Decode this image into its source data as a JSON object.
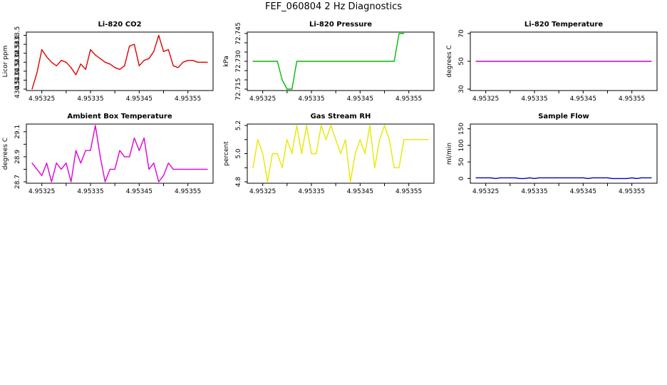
{
  "title": "FEF_060804  2 Hz Diagnostics",
  "chart_data": [
    {
      "type": "line",
      "title": "Li-820 CO2",
      "ylabel": "Licor ppm",
      "color": "#e00000",
      "x_ticks": [
        "4.95325",
        "4.95335",
        "4.95345",
        "4.95355"
      ],
      "x_range": [
        4.95323,
        4.95359
      ],
      "y_ticks": [
        430.5,
        431.0,
        431.5,
        432.0,
        432.5,
        433.0,
        433.5
      ],
      "y_tick_labels": [
        "430.5",
        "431.0",
        "431.5",
        "432.0",
        "432.5",
        "433.0",
        "433.5"
      ],
      "ylim": [
        430.5,
        433.6
      ],
      "x": [
        4.95323,
        4.95324,
        4.95325,
        4.95326,
        4.95327,
        4.95328,
        4.95329,
        4.9533,
        4.95331,
        4.95332,
        4.95333,
        4.95334,
        4.95335,
        4.95336,
        4.95337,
        4.95338,
        4.95339,
        4.9534,
        4.95341,
        4.95342,
        4.95343,
        4.95344,
        4.95345,
        4.95346,
        4.95347,
        4.95348,
        4.95349,
        4.9535,
        4.95351,
        4.95352,
        4.95353,
        4.95354,
        4.95355,
        4.95356,
        4.95357,
        4.95358,
        4.95359
      ],
      "y": [
        430.5,
        431.4,
        432.7,
        432.3,
        432.0,
        431.8,
        432.1,
        432.0,
        431.7,
        431.3,
        431.9,
        431.6,
        432.7,
        432.4,
        432.2,
        432.0,
        431.9,
        431.7,
        431.6,
        431.8,
        432.9,
        433.0,
        431.8,
        432.1,
        432.2,
        432.6,
        433.5,
        432.6,
        432.7,
        431.8,
        431.7,
        432.0,
        432.1,
        432.1,
        432.0,
        432.0,
        432.0
      ]
    },
    {
      "type": "line",
      "title": "Li-820 Pressure",
      "ylabel": "kPa",
      "color": "#00bb00",
      "x_ticks": [
        "4.95325",
        "4.95335",
        "4.95345",
        "4.95355"
      ],
      "x_range": [
        4.95323,
        4.95359
      ],
      "y_ticks": [
        72.715,
        72.72,
        72.725,
        72.73,
        72.735,
        72.74,
        72.745
      ],
      "y_tick_labels": [
        "72.715",
        "",
        "",
        "72.730",
        "",
        "",
        "72.745"
      ],
      "ylim": [
        72.715,
        72.745
      ],
      "x": [
        4.95323,
        4.95328,
        4.95329,
        4.9533,
        4.95331,
        4.95332,
        4.95352,
        4.95353,
        4.95354
      ],
      "y": [
        72.73,
        72.73,
        72.72,
        72.715,
        72.715,
        72.73,
        72.73,
        72.745,
        72.745
      ]
    },
    {
      "type": "line",
      "title": "Li-820 Temperature",
      "ylabel": "degrees C",
      "color": "#cc00cc",
      "x_ticks": [
        "4.95325",
        "4.95335",
        "4.95345",
        "4.95355"
      ],
      "x_range": [
        4.95323,
        4.95359
      ],
      "y_ticks": [
        30,
        50,
        70
      ],
      "y_tick_labels": [
        "30",
        "50",
        "70"
      ],
      "ylim": [
        30,
        70
      ],
      "x": [
        4.95323,
        4.95359
      ],
      "y": [
        50,
        50
      ]
    },
    {
      "type": "line",
      "title": "Ambient Box Temperature",
      "ylabel": "degrees C",
      "color": "#dd00dd",
      "x_ticks": [
        "4.95325",
        "4.95335",
        "4.95345",
        "4.95355"
      ],
      "x_range": [
        4.95323,
        4.95359
      ],
      "y_ticks": [
        28.7,
        28.8,
        28.9,
        29.0,
        29.1
      ],
      "y_tick_labels": [
        "28.7",
        "",
        "28.9",
        "",
        "29.1"
      ],
      "ylim": [
        28.7,
        29.15
      ],
      "x": [
        4.95323,
        4.95324,
        4.95325,
        4.95326,
        4.95327,
        4.95328,
        4.95329,
        4.9533,
        4.95331,
        4.95332,
        4.95333,
        4.95334,
        4.95335,
        4.95336,
        4.95337,
        4.95338,
        4.95339,
        4.9534,
        4.95341,
        4.95342,
        4.95343,
        4.95344,
        4.95345,
        4.95346,
        4.95347,
        4.95348,
        4.95349,
        4.9535,
        4.95351,
        4.95352,
        4.95353,
        4.95354,
        4.95355,
        4.95356,
        4.95357,
        4.95358,
        4.95359
      ],
      "y": [
        28.85,
        28.8,
        28.75,
        28.85,
        28.7,
        28.85,
        28.8,
        28.85,
        28.7,
        28.95,
        28.85,
        28.95,
        28.95,
        29.15,
        28.9,
        28.7,
        28.8,
        28.8,
        28.95,
        28.9,
        28.9,
        29.05,
        28.95,
        29.05,
        28.8,
        28.85,
        28.7,
        28.75,
        28.85,
        28.8,
        28.8,
        28.8,
        28.8,
        28.8,
        28.8,
        28.8,
        28.8
      ]
    },
    {
      "type": "line",
      "title": "Gas Stream RH",
      "ylabel": "percent",
      "color": "#e8e800",
      "x_ticks": [
        "4.95325",
        "4.95335",
        "4.95345",
        "4.95355"
      ],
      "x_range": [
        4.95323,
        4.95359
      ],
      "y_ticks": [
        4.8,
        4.9,
        5.0,
        5.1,
        5.2
      ],
      "y_tick_labels": [
        "4.8",
        "",
        "5.0",
        "",
        "5.2"
      ],
      "ylim": [
        4.8,
        5.2
      ],
      "x": [
        4.95323,
        4.95324,
        4.95325,
        4.95326,
        4.95327,
        4.95328,
        4.95329,
        4.9533,
        4.95331,
        4.95332,
        4.95333,
        4.95334,
        4.95335,
        4.95336,
        4.95337,
        4.95338,
        4.95339,
        4.9534,
        4.95341,
        4.95342,
        4.95343,
        4.95344,
        4.95345,
        4.95346,
        4.95347,
        4.95348,
        4.95349,
        4.9535,
        4.95351,
        4.95352,
        4.95353,
        4.95354,
        4.95355,
        4.95356,
        4.95357,
        4.95358,
        4.95359
      ],
      "y": [
        4.9,
        5.1,
        5.0,
        4.8,
        5.0,
        5.0,
        4.9,
        5.1,
        5.0,
        5.2,
        5.0,
        5.2,
        5.0,
        5.0,
        5.2,
        5.1,
        5.2,
        5.1,
        5.0,
        5.1,
        4.8,
        5.0,
        5.1,
        5.0,
        5.2,
        4.9,
        5.1,
        5.2,
        5.1,
        4.9,
        4.9,
        5.1,
        5.1,
        5.1,
        5.1,
        5.1,
        5.1
      ]
    },
    {
      "type": "line",
      "title": "Sample Flow",
      "ylabel": "ml/min",
      "color": "#0000cc",
      "x_ticks": [
        "4.95325",
        "4.95335",
        "4.95345",
        "4.95355"
      ],
      "x_range": [
        4.95323,
        4.95359
      ],
      "y_ticks": [
        0,
        50,
        100,
        150
      ],
      "y_tick_labels": [
        "0",
        "50",
        "100",
        "150"
      ],
      "ylim": [
        -10,
        160
      ],
      "x": [
        4.95323,
        4.95326,
        4.95327,
        4.95328,
        4.95331,
        4.95332,
        4.95333,
        4.95334,
        4.95335,
        4.95336,
        4.95345,
        4.95346,
        4.95347,
        4.9535,
        4.95351,
        4.95354,
        4.95355,
        4.95356,
        4.95357,
        4.95359
      ],
      "y": [
        2,
        2,
        0,
        2,
        2,
        0,
        0,
        2,
        0,
        2,
        2,
        0,
        2,
        2,
        0,
        0,
        2,
        0,
        2,
        2
      ]
    }
  ]
}
